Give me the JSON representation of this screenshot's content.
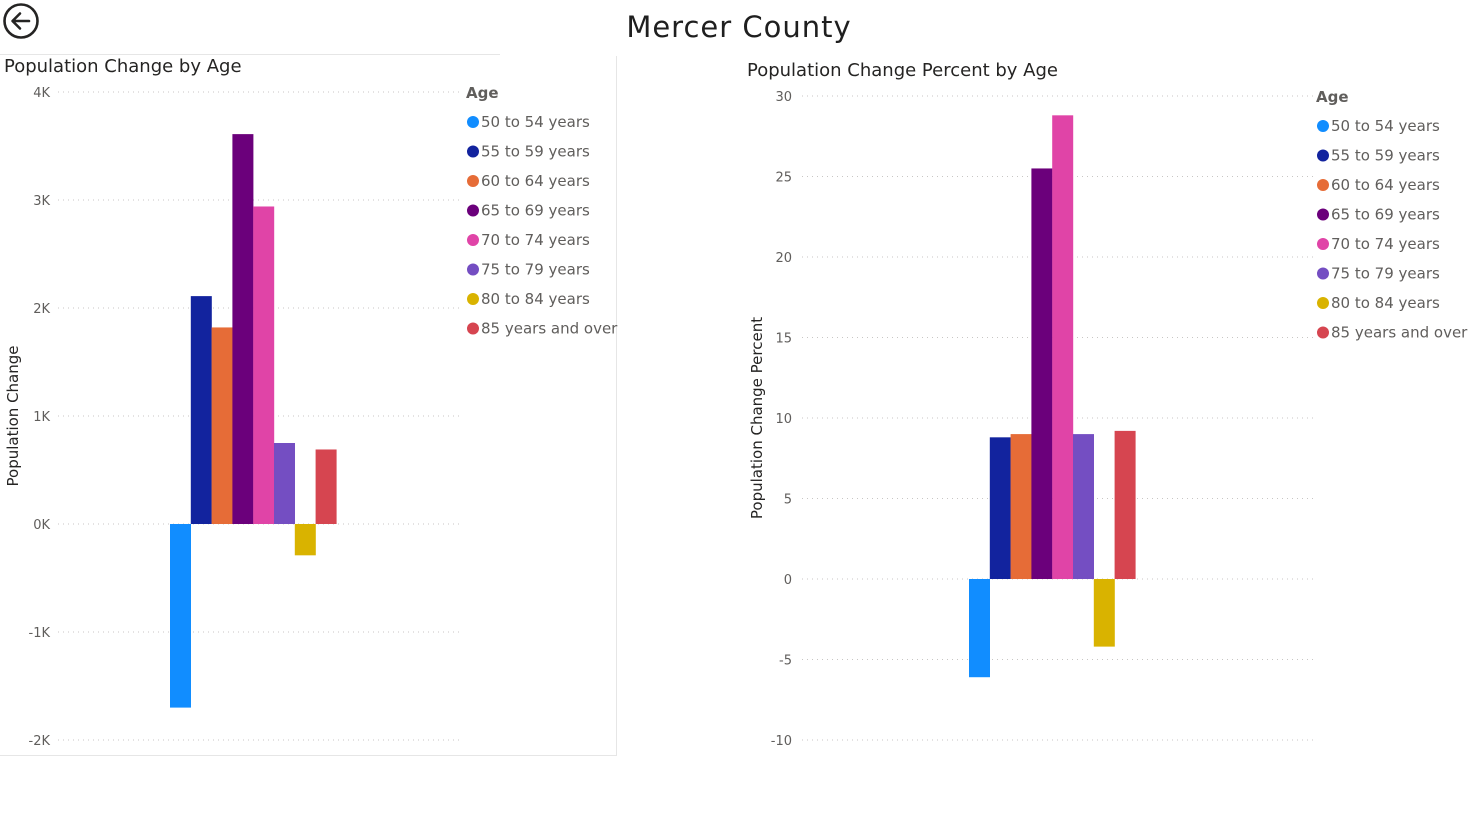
{
  "page": {
    "title": "Mercer County",
    "back_icon": "back-arrow-circle-icon"
  },
  "legend": {
    "title": "Age",
    "items": [
      {
        "label": "50 to 54 years",
        "color": "#118DFF"
      },
      {
        "label": "55 to 59 years",
        "color": "#12239E"
      },
      {
        "label": "60 to 64 years",
        "color": "#E66C37"
      },
      {
        "label": "65 to 69 years",
        "color": "#6B007B"
      },
      {
        "label": "70 to 74 years",
        "color": "#E044A7"
      },
      {
        "label": "75 to 79 years",
        "color": "#744EC2"
      },
      {
        "label": "80 to 84 years",
        "color": "#D9B300"
      },
      {
        "label": "85 years and over",
        "color": "#D64550"
      }
    ]
  },
  "chart_data": [
    {
      "type": "bar",
      "title": "Population Change by Age",
      "xlabel": "",
      "ylabel": "Population Change",
      "ylim": [
        -2000,
        4000
      ],
      "ticks": [
        4000,
        3000,
        2000,
        1000,
        0,
        -1000,
        -2000
      ],
      "tick_labels": [
        "4K",
        "3K",
        "2K",
        "1K",
        "0K",
        "-1K",
        "-2K"
      ],
      "grid": true,
      "legend_position": "right",
      "series": [
        {
          "name": "50 to 54 years",
          "value": -1700
        },
        {
          "name": "55 to 59 years",
          "value": 2110
        },
        {
          "name": "60 to 64 years",
          "value": 1820
        },
        {
          "name": "65 to 69 years",
          "value": 3610
        },
        {
          "name": "70 to 74 years",
          "value": 2940
        },
        {
          "name": "75 to 79 years",
          "value": 750
        },
        {
          "name": "80 to 84 years",
          "value": -290
        },
        {
          "name": "85 years and over",
          "value": 690
        }
      ]
    },
    {
      "type": "bar",
      "title": "Population Change Percent by Age",
      "xlabel": "",
      "ylabel": "Population Change Percent",
      "ylim": [
        -10,
        30
      ],
      "ticks": [
        30,
        25,
        20,
        15,
        10,
        5,
        0,
        -5,
        -10
      ],
      "tick_labels": [
        "30",
        "25",
        "20",
        "15",
        "10",
        "5",
        "0",
        "-5",
        "-10"
      ],
      "grid": true,
      "legend_position": "right",
      "series": [
        {
          "name": "50 to 54 years",
          "value": -6.1
        },
        {
          "name": "55 to 59 years",
          "value": 8.8
        },
        {
          "name": "60 to 64 years",
          "value": 9.0
        },
        {
          "name": "65 to 69 years",
          "value": 25.5
        },
        {
          "name": "70 to 74 years",
          "value": 28.8
        },
        {
          "name": "75 to 79 years",
          "value": 9.0
        },
        {
          "name": "80 to 84 years",
          "value": -4.2
        },
        {
          "name": "85 years and over",
          "value": 9.2
        }
      ]
    }
  ]
}
